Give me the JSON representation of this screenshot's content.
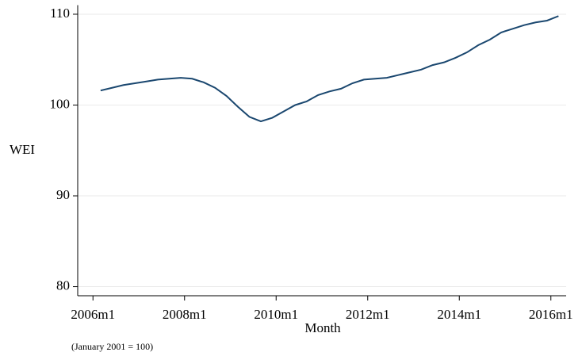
{
  "chart_data": {
    "type": "line",
    "y_label": "WEI",
    "x_label": "Month",
    "note": "(January 2001 = 100)",
    "x": [
      "2006m3",
      "2006m6",
      "2006m9",
      "2006m12",
      "2007m3",
      "2007m6",
      "2007m9",
      "2007m12",
      "2008m3",
      "2008m6",
      "2008m9",
      "2008m12",
      "2009m3",
      "2009m6",
      "2009m9",
      "2009m12",
      "2010m3",
      "2010m6",
      "2010m9",
      "2010m12",
      "2011m3",
      "2011m6",
      "2011m9",
      "2011m12",
      "2012m3",
      "2012m6",
      "2012m9",
      "2012m12",
      "2013m3",
      "2013m6",
      "2013m9",
      "2013m12",
      "2014m3",
      "2014m6",
      "2014m9",
      "2014m12",
      "2015m3",
      "2015m6",
      "2015m9",
      "2015m12",
      "2016m3"
    ],
    "series": [
      {
        "color": "#1a476f",
        "values": [
          101.6,
          101.9,
          102.2,
          102.4,
          102.6,
          102.8,
          102.9,
          103.0,
          102.9,
          102.5,
          101.9,
          101.0,
          99.8,
          98.7,
          98.2,
          98.6,
          99.3,
          100.0,
          100.4,
          101.1,
          101.5,
          101.8,
          102.4,
          102.8,
          102.9,
          103.0,
          103.3,
          103.6,
          103.9,
          104.4,
          104.7,
          105.2,
          105.8,
          106.6,
          107.2,
          108.0,
          108.4,
          108.8,
          109.1,
          109.3,
          109.8
        ]
      }
    ],
    "xlim": [
      "2005m9",
      "2016m5"
    ],
    "xticks": [
      "2006m1",
      "2008m1",
      "2010m1",
      "2012m1",
      "2014m1",
      "2016m1"
    ],
    "ylim": [
      79,
      111
    ],
    "yticks": [
      80,
      90,
      100,
      110
    ],
    "grid": true
  }
}
